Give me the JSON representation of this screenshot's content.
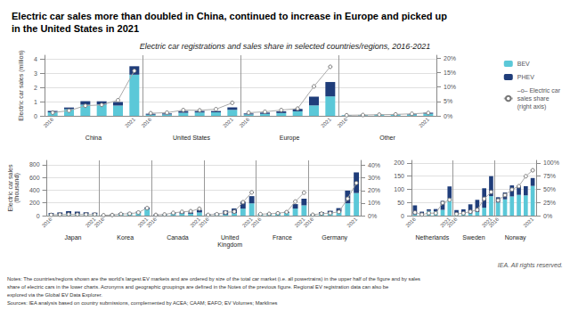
{
  "chart_data": [
    {
      "type": "bar",
      "title": "Electric car sales more than doubled in China, continued to increase in Europe and picked up\nin the United States in 2021",
      "subtitle": "Electric car registrations and sales share in selected countries/regions, 2016-2021",
      "annotations": [
        "IEA. All rights reserved.",
        "Notes: The countries/regions shown are the world's largest EV markets and are ordered by size of the total car market (i.e. all powertrains) in the upper half of the figure and by sales",
        "share of electric cars in the lower charts. Acronyms and geographic groupings are defined in the Notes of the previous figure. Regional EV registration data can also be",
        "explored via the Global EV Data Explorer.",
        "Sources: IEA analysis based on country submissions, complemented by ACEA; CAAM; EAFO; EV Volumes; Marklines"
      ],
      "stacked": true,
      "grid": true,
      "legend": "upper right",
      "groups": [
        "China",
        "United States",
        "Europe",
        "Other"
      ],
      "categories": [
        "2016",
        null,
        null,
        null,
        null,
        "2021",
        "2016",
        null,
        null,
        null,
        null,
        "2021",
        "2016",
        null,
        null,
        null,
        null,
        "2021",
        "2016",
        null,
        null,
        null,
        null,
        "2021"
      ],
      "ylabel": "Electric car sales (million)",
      "ylim": [
        0,
        4.3
      ],
      "yticks": [
        0,
        1,
        2,
        3,
        4
      ],
      "y2lim": [
        0,
        21
      ],
      "y2ticks": [
        {
          "value": 0,
          "label": "0%"
        },
        {
          "value": 5,
          "label": "5%"
        },
        {
          "value": 10,
          "label": "10%"
        },
        {
          "value": 15,
          "label": "15%"
        },
        {
          "value": 20,
          "label": "20%"
        }
      ],
      "series": [
        {
          "name": "BEV",
          "color": "#5bc8d8",
          "values": [
            0.25,
            0.47,
            0.79,
            0.8,
            0.73,
            2.92,
            0.08,
            0.1,
            0.22,
            0.24,
            0.25,
            0.43,
            0.1,
            0.14,
            0.2,
            0.32,
            0.74,
            1.38,
            0.04,
            0.05,
            0.07,
            0.08,
            0.09,
            0.15
          ]
        },
        {
          "name": "PHEV",
          "color": "#1f3d7a",
          "values": [
            0.09,
            0.12,
            0.25,
            0.23,
            0.25,
            0.6,
            0.07,
            0.07,
            0.12,
            0.1,
            0.09,
            0.17,
            0.07,
            0.09,
            0.12,
            0.17,
            0.62,
            1.02,
            0.01,
            0.01,
            0.02,
            0.02,
            0.03,
            0.07
          ]
        },
        {
          "name": "–o– Electric car\nsales share\n(right axis)",
          "type": "line",
          "axis": "y2",
          "color": "#aaaaaa",
          "marker": "circle",
          "values": [
            1.1,
            1.8,
            3.5,
            3.8,
            5.4,
            15.6,
            0.9,
            1.1,
            2.0,
            1.9,
            2.3,
            4.5,
            1.1,
            1.4,
            2.0,
            2.5,
            10.2,
            17.0,
            0.2,
            0.3,
            0.4,
            0.5,
            0.7,
            1.0
          ]
        }
      ]
    },
    {
      "type": "bar",
      "stacked": true,
      "grid": true,
      "groups": [
        "Japan",
        "Korea",
        "Canada",
        "United\nKingdom",
        "France",
        "Germany"
      ],
      "categories": [
        "2016",
        null,
        null,
        null,
        null,
        "2021",
        "2016",
        null,
        null,
        null,
        null,
        "2021",
        "2016",
        null,
        null,
        null,
        null,
        "2021",
        "2016",
        null,
        null,
        null,
        null,
        "2021",
        "2016",
        null,
        null,
        null,
        null,
        "2021",
        "2016",
        null,
        null,
        null,
        null,
        "2021"
      ],
      "ylabel": "Electric car sales\n(thousand)",
      "ylim": [
        0,
        870
      ],
      "yticks": [
        0,
        200,
        400,
        600,
        800
      ],
      "y2lim": [
        0,
        44
      ],
      "y2ticks": [
        {
          "value": 0,
          "label": "0%"
        },
        {
          "value": 10,
          "label": "10%"
        },
        {
          "value": 20,
          "label": "20%"
        },
        {
          "value": 30,
          "label": "30%"
        },
        {
          "value": 40,
          "label": "40%"
        }
      ],
      "series": [
        {
          "name": "BEV",
          "color": "#5bc8d8",
          "values": [
            15,
            18,
            30,
            28,
            22,
            21,
            5,
            14,
            31,
            34,
            47,
            100,
            7,
            13,
            25,
            33,
            30,
            50,
            9,
            13,
            15,
            38,
            110,
            193,
            22,
            25,
            31,
            42,
            111,
            162,
            11,
            25,
            36,
            63,
            194,
            356
          ]
        },
        {
          "name": "PHEV",
          "color": "#1f3d7a",
          "values": [
            25,
            32,
            40,
            35,
            30,
            25,
            3,
            5,
            10,
            12,
            15,
            30,
            10,
            12,
            20,
            22,
            20,
            40,
            15,
            25,
            65,
            75,
            110,
            114,
            7,
            10,
            13,
            18,
            70,
            105,
            10,
            29,
            40,
            55,
            200,
            325
          ]
        },
        {
          "name": "–o– Electric car\nsales share\n(right axis)",
          "type": "line",
          "axis": "y2",
          "color": "#aaaaaa",
          "marker": "circle",
          "values": [
            0.6,
            0.8,
            1.0,
            0.9,
            0.9,
            0.9,
            0.3,
            0.5,
            1.3,
            1.5,
            2.5,
            6.0,
            0.6,
            0.9,
            2.2,
            3.0,
            3.5,
            5.5,
            0.6,
            1.1,
            2.5,
            3.2,
            10.7,
            18.5,
            1.2,
            1.4,
            1.9,
            2.8,
            11.2,
            18.3,
            0.7,
            1.6,
            2.0,
            3.0,
            13.5,
            26.0
          ]
        }
      ]
    },
    {
      "type": "bar",
      "stacked": true,
      "grid": true,
      "groups": [
        "Netherlands",
        "Sweden",
        "Norway"
      ],
      "categories": [
        "2016",
        null,
        null,
        null,
        null,
        "2021",
        "2016",
        null,
        null,
        null,
        null,
        "2021",
        "2016",
        null,
        null,
        null,
        null,
        "2021"
      ],
      "ylim": [
        0,
        210
      ],
      "yticks": [
        0,
        50,
        100,
        150,
        200
      ],
      "y2lim": [
        0,
        105
      ],
      "y2ticks": [
        {
          "value": 0,
          "label": "0%"
        },
        {
          "value": 25,
          "label": "25%"
        },
        {
          "value": 50,
          "label": "50%"
        },
        {
          "value": 75,
          "label": "75%"
        },
        {
          "value": 100,
          "label": "100%"
        }
      ],
      "series": [
        {
          "name": "BEV",
          "color": "#5bc8d8",
          "values": [
            4,
            7,
            18,
            16,
            22,
            65,
            6,
            6,
            8,
            14,
            30,
            74,
            50,
            62,
            73,
            79,
            77,
            113
          ]
        },
        {
          "name": "PHEV",
          "color": "#1f3d7a",
          "values": [
            35,
            8,
            6,
            9,
            34,
            46,
            15,
            18,
            35,
            46,
            74,
            76,
            20,
            26,
            42,
            35,
            35,
            30
          ]
        },
        {
          "name": "–o– Electric car\nsales share\n(right axis)",
          "type": "line",
          "axis": "y2",
          "color": "#aaaaaa",
          "marker": "circle",
          "values": [
            6.0,
            2.0,
            4.7,
            4.7,
            24.0,
            30.0,
            3.0,
            4.5,
            7.5,
            11.0,
            32.0,
            45.0,
            29.0,
            39.0,
            49.5,
            55.9,
            74.8,
            86.2
          ]
        }
      ]
    }
  ]
}
